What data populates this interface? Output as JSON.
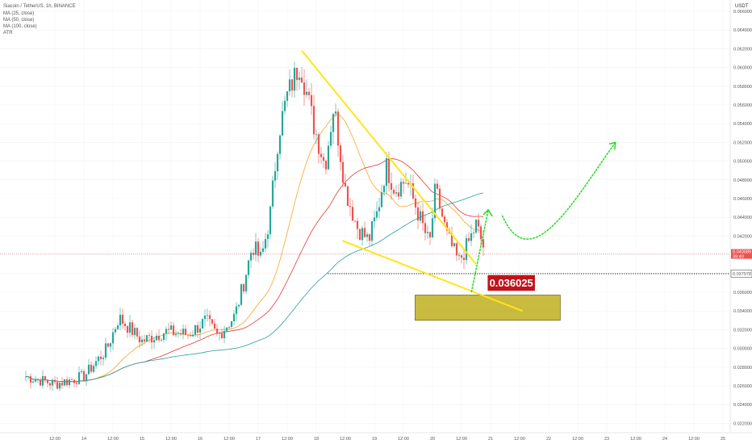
{
  "window": {
    "title": "Siacoin / TetherUS, 1h, BINANCE"
  },
  "legend": {
    "symbol": "Siacoin / TetherUS, 1h, BINANCE",
    "indicators": [
      "MA (25, close)",
      "MA (50, close)",
      "MA (100, close)",
      "ATR"
    ]
  },
  "colors": {
    "up": "#26a69a",
    "down": "#ef5350",
    "ma25": "#f5a623",
    "ma50": "#e53935",
    "ma100": "#26a0a0",
    "trendline": "#ffe51a",
    "arrow": "#22dd22",
    "zone_fill": "#b7a300",
    "zone_stroke": "#5a5000",
    "label_bg": "#c0131b"
  },
  "chart_data": {
    "type": "candlestick",
    "y_axis": {
      "unit_label": "USDT",
      "range": [
        0.023,
        0.067
      ],
      "ticks": [
        "0.066000",
        "0.064000",
        "0.062000",
        "0.060000",
        "0.058000",
        "0.056000",
        "0.054000",
        "0.052000",
        "0.050000",
        "0.048000",
        "0.046000",
        "0.044000",
        "0.042000",
        "0.040000",
        "0.038000",
        "0.036000",
        "0.034000",
        "0.032000",
        "0.030000",
        "0.028000",
        "0.026000",
        "0.024000",
        "0.022000"
      ]
    },
    "x_axis": {
      "ticks": [
        "12:00",
        "14",
        "12:00",
        "15",
        "12:00",
        "16",
        "12:00",
        "17",
        "12:00",
        "18",
        "12:00",
        "19",
        "12:00",
        "20",
        "12:00",
        "21",
        "12:00",
        "22",
        "12:00",
        "23",
        "12:00",
        "24",
        "12:00",
        "25",
        "12:00"
      ]
    },
    "last_price": {
      "value": "0.040089",
      "sub": "39:40",
      "yval": 0.04009
    },
    "level_line": {
      "value": "0.037978",
      "yval": 0.03798
    },
    "target_label": {
      "text": "0.036025"
    },
    "zone": {
      "top": 0.0357,
      "bottom": 0.033
    },
    "trendlines": [
      {
        "from": [
          17.75,
          0.0618
        ],
        "to": [
          20.75,
          0.039
        ]
      },
      {
        "from": [
          18.45,
          0.0415
        ],
        "to": [
          21.55,
          0.034
        ]
      }
    ],
    "arrows": [
      {
        "kind": "up",
        "from": [
          20.67,
          0.036
        ],
        "to": [
          20.96,
          0.0448
        ]
      },
      {
        "kind": "curve",
        "points": [
          [
            21.2,
            0.0442
          ],
          [
            21.7,
            0.0406
          ],
          [
            22.5,
            0.0465
          ],
          [
            23.15,
            0.052
          ]
        ]
      }
    ],
    "candles_hint": "hourly candles Siacoin/USDT, 2020-08-13 to 2020-20",
    "series": [
      {
        "name": "MA (25, close)"
      },
      {
        "name": "MA (50, close)"
      },
      {
        "name": "MA (100, close)"
      }
    ],
    "anchors": [
      [
        13.0,
        0.027
      ],
      [
        13.5,
        0.0262
      ],
      [
        14.0,
        0.027
      ],
      [
        14.4,
        0.03
      ],
      [
        14.6,
        0.0333
      ],
      [
        15.0,
        0.0308
      ],
      [
        15.4,
        0.0318
      ],
      [
        15.8,
        0.0315
      ],
      [
        16.1,
        0.033
      ],
      [
        16.3,
        0.0313
      ],
      [
        16.6,
        0.0335
      ],
      [
        16.75,
        0.037
      ],
      [
        16.9,
        0.041
      ],
      [
        17.05,
        0.0395
      ],
      [
        17.2,
        0.044
      ],
      [
        17.35,
        0.053
      ],
      [
        17.5,
        0.057
      ],
      [
        17.72,
        0.0605
      ],
      [
        17.95,
        0.054
      ],
      [
        18.15,
        0.0495
      ],
      [
        18.3,
        0.056
      ],
      [
        18.5,
        0.047
      ],
      [
        18.7,
        0.043
      ],
      [
        18.9,
        0.0415
      ],
      [
        19.05,
        0.0445
      ],
      [
        19.2,
        0.0495
      ],
      [
        19.35,
        0.047
      ],
      [
        19.55,
        0.048
      ],
      [
        19.75,
        0.0445
      ],
      [
        19.95,
        0.041
      ],
      [
        20.05,
        0.047
      ],
      [
        20.25,
        0.042
      ],
      [
        20.45,
        0.0392
      ],
      [
        20.6,
        0.041
      ],
      [
        20.75,
        0.0432
      ],
      [
        20.88,
        0.0408
      ]
    ]
  }
}
